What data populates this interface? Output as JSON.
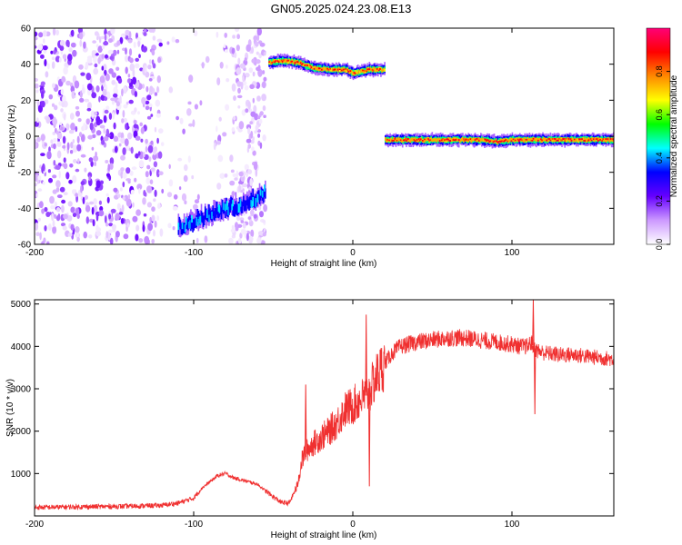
{
  "title": "GN05.2025.024.23.08.E13",
  "chart_data": [
    {
      "type": "heatmap",
      "xlabel": "Height of straight line (km)",
      "ylabel": "Frequency (Hz)",
      "xlim": [
        -200,
        164
      ],
      "ylim": [
        -60,
        60
      ],
      "xticks": [
        -200,
        -100,
        0,
        100
      ],
      "yticks": [
        -60,
        -40,
        -20,
        0,
        20,
        40,
        60
      ],
      "colorbar": {
        "label": "Normalized spectral amplitude",
        "range": [
          0,
          1
        ],
        "ticks": [
          0.0,
          0.2,
          0.4,
          0.6,
          0.8
        ],
        "colors": [
          "#ffffff",
          "#cc99ff",
          "#6600ff",
          "#0000ff",
          "#00ffff",
          "#00ff00",
          "#ffff00",
          "#ff8800",
          "#ff0000",
          "#ff0077"
        ]
      },
      "features": [
        {
          "kind": "noise",
          "x_range": [
            -200,
            -55
          ],
          "f_range": [
            -60,
            60
          ],
          "amplitude": 0.2
        },
        {
          "kind": "band",
          "x": [
            -110,
            -100,
            -90,
            -80,
            -70,
            -60,
            -55
          ],
          "f": [
            -50,
            -47,
            -43,
            -40,
            -38,
            -34,
            -30
          ],
          "amplitude": 0.45
        },
        {
          "kind": "band",
          "x": [
            -53,
            -45,
            -35,
            -25,
            -15,
            -5,
            0,
            5,
            10,
            20
          ],
          "f": [
            41,
            42,
            41,
            38,
            37,
            37,
            35,
            36,
            37,
            37
          ],
          "amplitude": 0.95
        },
        {
          "kind": "band",
          "x": [
            20,
            40,
            60,
            80,
            90,
            100,
            110,
            120,
            140,
            164
          ],
          "f": [
            -2,
            -2,
            -2,
            -2,
            -3,
            -2,
            -2,
            -2,
            -2,
            -2
          ],
          "amplitude": 1.0
        }
      ]
    },
    {
      "type": "line",
      "xlabel": "Height of straight line (km)",
      "ylabel": "SNR (10 * v/v)",
      "xlim": [
        -200,
        164
      ],
      "ylim": [
        0,
        5100
      ],
      "xticks": [
        -200,
        -100,
        0,
        100
      ],
      "yticks": [
        1000,
        2000,
        3000,
        4000,
        5000
      ],
      "color": "#f03030",
      "series": [
        {
          "x": [
            -200,
            -180,
            -160,
            -140,
            -120,
            -110,
            -100,
            -95,
            -90,
            -85,
            -80,
            -75,
            -70,
            -65,
            -60,
            -55,
            -50,
            -45,
            -40,
            -35,
            -32,
            -30,
            -25,
            -20,
            -15,
            -10,
            -5,
            0,
            5,
            10,
            15,
            20,
            25,
            30,
            40,
            50,
            60,
            70,
            80,
            90,
            100,
            105,
            110,
            112,
            114,
            116,
            120,
            130,
            140,
            150,
            164
          ],
          "y": [
            200,
            210,
            220,
            230,
            250,
            300,
            420,
            650,
            800,
            950,
            1000,
            900,
            850,
            800,
            750,
            600,
            450,
            320,
            300,
            700,
            1300,
            1500,
            1700,
            1850,
            2000,
            2200,
            2500,
            2600,
            2750,
            2900,
            3300,
            3600,
            3850,
            4000,
            4100,
            4150,
            4200,
            4200,
            4150,
            4100,
            4050,
            4000,
            4000,
            4100,
            3950,
            3900,
            3850,
            3800,
            3800,
            3750,
            3700
          ]
        }
      ],
      "spikes": [
        {
          "x": -30,
          "y": 3100
        },
        {
          "x": 8,
          "y": 4750
        },
        {
          "x": 10,
          "y": 700
        },
        {
          "x": 113,
          "y": 5100
        },
        {
          "x": 114,
          "y": 2400
        }
      ]
    }
  ]
}
